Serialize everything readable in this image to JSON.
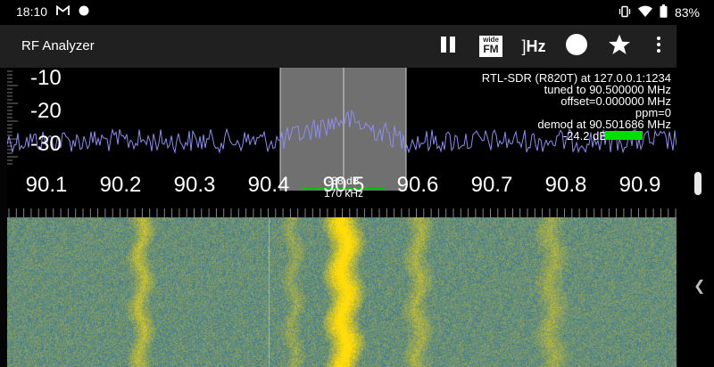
{
  "status_bar": {
    "time": "18:10",
    "left_icons": [
      "gmail-icon",
      "notification-dot-icon"
    ],
    "right_icons": [
      "vibrate-icon",
      "wifi-icon",
      "battery-icon"
    ],
    "battery_percent": "83%"
  },
  "app_bar": {
    "title": "RF Analyzer",
    "actions": [
      {
        "name": "pause-button",
        "icon": "pause-icon"
      },
      {
        "name": "demodulation-button",
        "icon": "wide-fm-icon",
        "line1": "wide",
        "line2": "FM"
      },
      {
        "name": "tune-to-frequency-button",
        "icon": "hz-icon",
        "label": "Hz"
      },
      {
        "name": "record-button",
        "icon": "record-icon"
      },
      {
        "name": "bookmarks-button",
        "icon": "star-icon"
      },
      {
        "name": "overflow-menu-button",
        "icon": "more-vert-icon"
      }
    ]
  },
  "spectrum": {
    "db_labels": [
      "-10",
      "-20",
      "-30"
    ],
    "freq_labels": [
      "90.1",
      "90.2",
      "90.3",
      "90.4",
      "90.5",
      "90.6",
      "90.7",
      "90.8",
      "90.9"
    ],
    "info": {
      "source": "RTL-SDR (R820T) at 127.0.0.1:1234",
      "tuned": "tuned to 90.500000 MHz",
      "offset": "offset=0.000000 MHz",
      "ppm": "ppm=0",
      "demod": "demod at 90.501686 MHz",
      "squelch": "-24.2 dB"
    },
    "channel": {
      "squelch_marker": "-38 dB",
      "bandwidth": "170 kHz"
    }
  },
  "colors": {
    "trace": "#8c8cf0",
    "channel_overlay": "#a0a0a0",
    "squelch_green": "#00e000",
    "app_bar": "#202020"
  }
}
